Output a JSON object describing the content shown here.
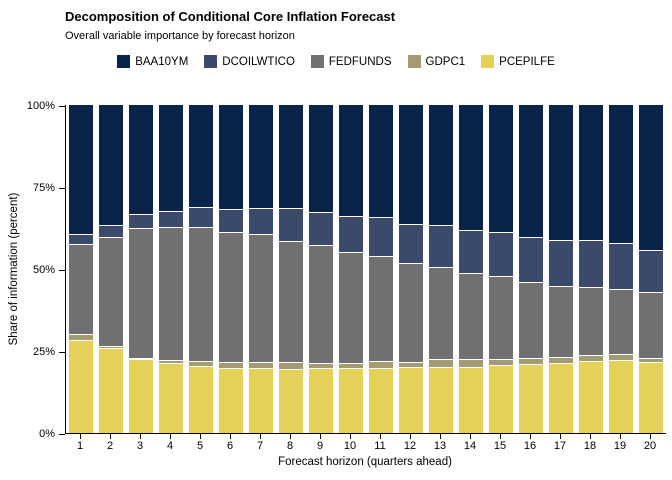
{
  "header": {
    "title": "Decomposition of Conditional Core Inflation Forecast",
    "subtitle": "Overall variable importance by forecast horizon"
  },
  "chart_data": {
    "type": "bar",
    "stacked": true,
    "title": "Decomposition of Conditional Core Inflation Forecast",
    "subtitle": "Overall variable importance by forecast horizon",
    "xlabel": "Forecast horizon (quarters ahead)",
    "ylabel": "Share of information (percent)",
    "ylim": [
      0,
      100
    ],
    "grid": false,
    "legend_position": "top",
    "legend_order": [
      "BAA10YM",
      "DCOILWTICO",
      "FEDFUNDS",
      "GDPC1",
      "PCEPILFE"
    ],
    "y_ticks": [
      {
        "label": "0%",
        "value": 0
      },
      {
        "label": "25%",
        "value": 25
      },
      {
        "label": "50%",
        "value": 50
      },
      {
        "label": "75%",
        "value": 75
      },
      {
        "label": "100%",
        "value": 100
      }
    ],
    "categories": [
      "1",
      "2",
      "3",
      "4",
      "5",
      "6",
      "7",
      "8",
      "9",
      "10",
      "11",
      "12",
      "13",
      "14",
      "15",
      "16",
      "17",
      "18",
      "19",
      "20"
    ],
    "series": [
      {
        "name": "PCEPILFE",
        "color": "#E5D05A",
        "values": [
          28.0,
          25.5,
          22.3,
          20.9,
          20.2,
          19.6,
          19.4,
          19.2,
          19.4,
          19.4,
          19.4,
          19.9,
          19.7,
          19.9,
          20.4,
          20.6,
          20.9,
          21.5,
          21.9,
          21.2
        ]
      },
      {
        "name": "GDPC1",
        "color": "#A49B72",
        "values": [
          2.0,
          0.8,
          0.4,
          1.1,
          1.5,
          1.7,
          1.9,
          2.1,
          1.6,
          1.6,
          2.2,
          1.3,
          2.6,
          2.4,
          1.9,
          1.9,
          2.1,
          2.0,
          1.9,
          1.3
        ]
      },
      {
        "name": "FEDFUNDS",
        "color": "#707072",
        "values": [
          27.3,
          33.3,
          39.4,
          40.5,
          40.9,
          39.8,
          39.0,
          36.9,
          36.0,
          34.0,
          32.1,
          30.2,
          27.9,
          26.3,
          25.3,
          23.3,
          21.6,
          20.8,
          19.7,
          20.3
        ]
      },
      {
        "name": "DCOILWTICO",
        "color": "#3B4A6B",
        "values": [
          3.0,
          3.5,
          4.3,
          4.9,
          6.1,
          6.9,
          8.1,
          10.2,
          10.2,
          10.9,
          11.8,
          12.0,
          12.9,
          13.0,
          13.5,
          13.8,
          14.1,
          14.2,
          14.2,
          12.7
        ]
      },
      {
        "name": "BAA10YM",
        "color": "#0A2349",
        "values": [
          39.7,
          36.9,
          33.6,
          32.6,
          31.3,
          32.0,
          31.6,
          31.6,
          32.8,
          34.1,
          34.5,
          36.6,
          36.9,
          38.4,
          38.9,
          40.4,
          41.3,
          41.5,
          42.3,
          44.5
        ]
      }
    ],
    "separator_color": "#FFFFFF"
  }
}
